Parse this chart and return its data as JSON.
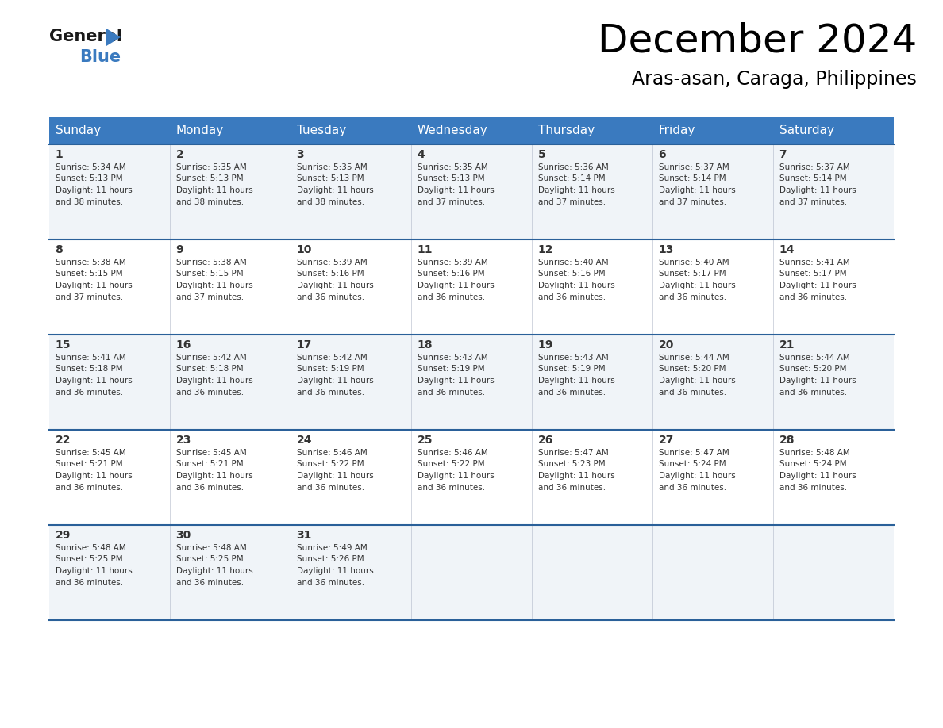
{
  "title": "December 2024",
  "subtitle": "Aras-asan, Caraga, Philippines",
  "header_bg_color": "#3a7abf",
  "header_text_color": "#ffffff",
  "row_bg_colors": [
    "#f0f4f8",
    "#ffffff"
  ],
  "cell_border_color": "#2a6099",
  "text_color": "#333333",
  "days_of_week": [
    "Sunday",
    "Monday",
    "Tuesday",
    "Wednesday",
    "Thursday",
    "Friday",
    "Saturday"
  ],
  "weeks": [
    [
      {
        "day": 1,
        "sunrise": "5:34 AM",
        "sunset": "5:13 PM",
        "daylight_hours": 11,
        "daylight_minutes": 38
      },
      {
        "day": 2,
        "sunrise": "5:35 AM",
        "sunset": "5:13 PM",
        "daylight_hours": 11,
        "daylight_minutes": 38
      },
      {
        "day": 3,
        "sunrise": "5:35 AM",
        "sunset": "5:13 PM",
        "daylight_hours": 11,
        "daylight_minutes": 38
      },
      {
        "day": 4,
        "sunrise": "5:35 AM",
        "sunset": "5:13 PM",
        "daylight_hours": 11,
        "daylight_minutes": 37
      },
      {
        "day": 5,
        "sunrise": "5:36 AM",
        "sunset": "5:14 PM",
        "daylight_hours": 11,
        "daylight_minutes": 37
      },
      {
        "day": 6,
        "sunrise": "5:37 AM",
        "sunset": "5:14 PM",
        "daylight_hours": 11,
        "daylight_minutes": 37
      },
      {
        "day": 7,
        "sunrise": "5:37 AM",
        "sunset": "5:14 PM",
        "daylight_hours": 11,
        "daylight_minutes": 37
      }
    ],
    [
      {
        "day": 8,
        "sunrise": "5:38 AM",
        "sunset": "5:15 PM",
        "daylight_hours": 11,
        "daylight_minutes": 37
      },
      {
        "day": 9,
        "sunrise": "5:38 AM",
        "sunset": "5:15 PM",
        "daylight_hours": 11,
        "daylight_minutes": 37
      },
      {
        "day": 10,
        "sunrise": "5:39 AM",
        "sunset": "5:16 PM",
        "daylight_hours": 11,
        "daylight_minutes": 36
      },
      {
        "day": 11,
        "sunrise": "5:39 AM",
        "sunset": "5:16 PM",
        "daylight_hours": 11,
        "daylight_minutes": 36
      },
      {
        "day": 12,
        "sunrise": "5:40 AM",
        "sunset": "5:16 PM",
        "daylight_hours": 11,
        "daylight_minutes": 36
      },
      {
        "day": 13,
        "sunrise": "5:40 AM",
        "sunset": "5:17 PM",
        "daylight_hours": 11,
        "daylight_minutes": 36
      },
      {
        "day": 14,
        "sunrise": "5:41 AM",
        "sunset": "5:17 PM",
        "daylight_hours": 11,
        "daylight_minutes": 36
      }
    ],
    [
      {
        "day": 15,
        "sunrise": "5:41 AM",
        "sunset": "5:18 PM",
        "daylight_hours": 11,
        "daylight_minutes": 36
      },
      {
        "day": 16,
        "sunrise": "5:42 AM",
        "sunset": "5:18 PM",
        "daylight_hours": 11,
        "daylight_minutes": 36
      },
      {
        "day": 17,
        "sunrise": "5:42 AM",
        "sunset": "5:19 PM",
        "daylight_hours": 11,
        "daylight_minutes": 36
      },
      {
        "day": 18,
        "sunrise": "5:43 AM",
        "sunset": "5:19 PM",
        "daylight_hours": 11,
        "daylight_minutes": 36
      },
      {
        "day": 19,
        "sunrise": "5:43 AM",
        "sunset": "5:19 PM",
        "daylight_hours": 11,
        "daylight_minutes": 36
      },
      {
        "day": 20,
        "sunrise": "5:44 AM",
        "sunset": "5:20 PM",
        "daylight_hours": 11,
        "daylight_minutes": 36
      },
      {
        "day": 21,
        "sunrise": "5:44 AM",
        "sunset": "5:20 PM",
        "daylight_hours": 11,
        "daylight_minutes": 36
      }
    ],
    [
      {
        "day": 22,
        "sunrise": "5:45 AM",
        "sunset": "5:21 PM",
        "daylight_hours": 11,
        "daylight_minutes": 36
      },
      {
        "day": 23,
        "sunrise": "5:45 AM",
        "sunset": "5:21 PM",
        "daylight_hours": 11,
        "daylight_minutes": 36
      },
      {
        "day": 24,
        "sunrise": "5:46 AM",
        "sunset": "5:22 PM",
        "daylight_hours": 11,
        "daylight_minutes": 36
      },
      {
        "day": 25,
        "sunrise": "5:46 AM",
        "sunset": "5:22 PM",
        "daylight_hours": 11,
        "daylight_minutes": 36
      },
      {
        "day": 26,
        "sunrise": "5:47 AM",
        "sunset": "5:23 PM",
        "daylight_hours": 11,
        "daylight_minutes": 36
      },
      {
        "day": 27,
        "sunrise": "5:47 AM",
        "sunset": "5:24 PM",
        "daylight_hours": 11,
        "daylight_minutes": 36
      },
      {
        "day": 28,
        "sunrise": "5:48 AM",
        "sunset": "5:24 PM",
        "daylight_hours": 11,
        "daylight_minutes": 36
      }
    ],
    [
      {
        "day": 29,
        "sunrise": "5:48 AM",
        "sunset": "5:25 PM",
        "daylight_hours": 11,
        "daylight_minutes": 36
      },
      {
        "day": 30,
        "sunrise": "5:48 AM",
        "sunset": "5:25 PM",
        "daylight_hours": 11,
        "daylight_minutes": 36
      },
      {
        "day": 31,
        "sunrise": "5:49 AM",
        "sunset": "5:26 PM",
        "daylight_hours": 11,
        "daylight_minutes": 36
      },
      null,
      null,
      null,
      null
    ]
  ],
  "logo_triangle_color": "#3a7abf",
  "title_fontsize": 36,
  "subtitle_fontsize": 17,
  "header_fontsize": 11,
  "day_num_fontsize": 10,
  "cell_text_fontsize": 7.5
}
